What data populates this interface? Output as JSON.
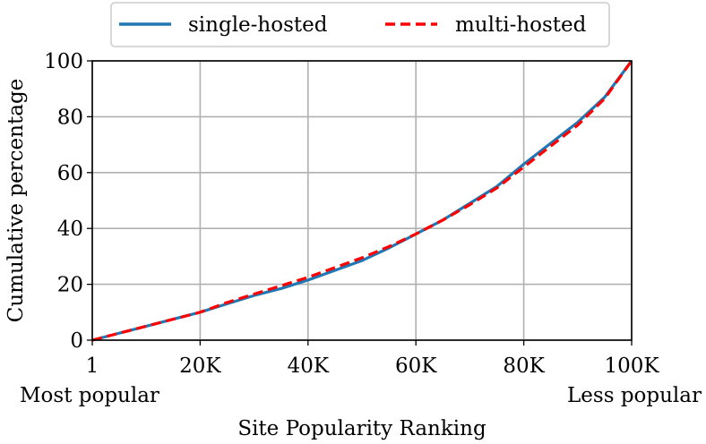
{
  "chart_data": {
    "type": "line",
    "title": "",
    "xlabel": "Site Popularity Ranking",
    "ylabel": "Cumulative percentage",
    "xlim": [
      1,
      100000
    ],
    "ylim": [
      0,
      100
    ],
    "grid": true,
    "legend_position": "top",
    "x_ticks": [
      {
        "value": 1,
        "label": "1"
      },
      {
        "value": 20000,
        "label": "20K"
      },
      {
        "value": 40000,
        "label": "40K"
      },
      {
        "value": 60000,
        "label": "60K"
      },
      {
        "value": 80000,
        "label": "80K"
      },
      {
        "value": 100000,
        "label": "100K"
      }
    ],
    "y_ticks": [
      {
        "value": 0,
        "label": "0"
      },
      {
        "value": 20,
        "label": "20"
      },
      {
        "value": 40,
        "label": "40"
      },
      {
        "value": 60,
        "label": "60"
      },
      {
        "value": 80,
        "label": "80"
      },
      {
        "value": 100,
        "label": "100"
      }
    ],
    "x_end_annotations": {
      "left": "Most popular",
      "right": "Less popular"
    },
    "series": [
      {
        "name": "single-hosted",
        "color": "#1f77b4",
        "style": "solid",
        "x": [
          1,
          5000,
          10000,
          15000,
          20000,
          25000,
          30000,
          35000,
          40000,
          45000,
          50000,
          55000,
          60000,
          65000,
          70000,
          75000,
          80000,
          85000,
          90000,
          95000,
          100000
        ],
        "y": [
          0,
          2.5,
          5,
          7.5,
          10,
          13,
          16,
          18.5,
          21.5,
          25,
          28.5,
          33,
          38,
          43,
          49,
          55,
          63,
          70.5,
          78,
          87,
          100
        ]
      },
      {
        "name": "multi-hosted",
        "color": "#ff0000",
        "style": "dashed",
        "x": [
          1,
          5000,
          10000,
          15000,
          20000,
          25000,
          30000,
          35000,
          40000,
          45000,
          50000,
          55000,
          60000,
          65000,
          70000,
          75000,
          80000,
          85000,
          90000,
          95000,
          100000
        ],
        "y": [
          0,
          2.5,
          5,
          7.5,
          10,
          13.5,
          16.5,
          19.5,
          22.5,
          26,
          29.5,
          33.5,
          38,
          43,
          48.5,
          54.5,
          62,
          69.5,
          77,
          86.5,
          100
        ]
      }
    ]
  }
}
